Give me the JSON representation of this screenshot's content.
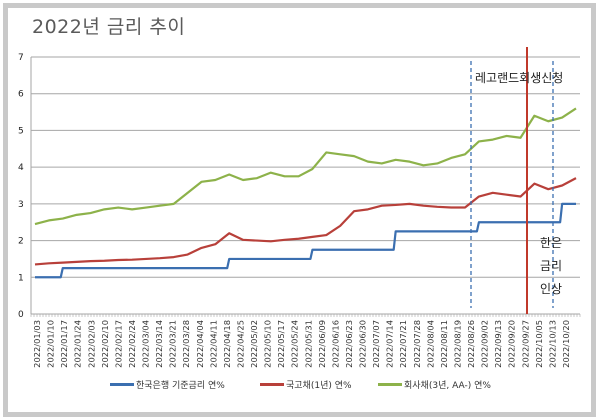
{
  "title": "2022년 금리 추이",
  "chart_data": {
    "type": "line",
    "title": "2022년 금리 추이",
    "xlabel": "",
    "ylabel": "",
    "ylim": [
      0,
      7
    ],
    "yticks": [
      0,
      1,
      2,
      3,
      4,
      5,
      6,
      7
    ],
    "grid": true,
    "legend_position": "bottom",
    "categories": [
      "2022/01/03",
      "2022/01/10",
      "2022/01/17",
      "2022/01/24",
      "2022/02/03",
      "2022/02/10",
      "2022/02/17",
      "2022/02/24",
      "2022/03/04",
      "2022/03/14",
      "2022/03/21",
      "2022/03/28",
      "2022/04/04",
      "2022/04/11",
      "2022/04/18",
      "2022/04/25",
      "2022/05/02",
      "2022/05/10",
      "2022/05/17",
      "2022/05/24",
      "2022/05/31",
      "2022/06/09",
      "2022/06/16",
      "2022/06/23",
      "2022/06/30",
      "2022/07/07",
      "2022/07/14",
      "2022/07/21",
      "2022/07/28",
      "2022/08/04",
      "2022/08/11",
      "2022/08/19",
      "2022/08/26",
      "2022/09/02",
      "2022/09/13",
      "2022/09/20",
      "2022/09/27",
      "2022/10/05",
      "2022/10/13",
      "2022/10/20"
    ],
    "series": [
      {
        "name": "한국은행 기준금리 연%",
        "color": "#3b6fb0",
        "values": [
          1.0,
          1.0,
          1.25,
          1.25,
          1.25,
          1.25,
          1.25,
          1.25,
          1.25,
          1.25,
          1.25,
          1.25,
          1.25,
          1.25,
          1.5,
          1.5,
          1.5,
          1.5,
          1.5,
          1.5,
          1.75,
          1.75,
          1.75,
          1.75,
          1.75,
          1.75,
          2.25,
          2.25,
          2.25,
          2.25,
          2.25,
          2.25,
          2.5,
          2.5,
          2.5,
          2.5,
          2.5,
          2.5,
          3.0,
          3.0
        ]
      },
      {
        "name": "국고채(1년) 연%",
        "color": "#b8403a",
        "values": [
          1.35,
          1.38,
          1.4,
          1.42,
          1.44,
          1.45,
          1.47,
          1.48,
          1.5,
          1.52,
          1.55,
          1.62,
          1.8,
          1.9,
          2.2,
          2.02,
          2.0,
          1.98,
          2.02,
          2.05,
          2.1,
          2.15,
          2.4,
          2.8,
          2.85,
          2.95,
          2.97,
          3.0,
          2.95,
          2.92,
          2.9,
          2.9,
          3.2,
          3.3,
          3.25,
          3.2,
          3.55,
          3.4,
          3.5,
          3.7
        ]
      },
      {
        "name": "회사채(3년, AA-) 연%",
        "color": "#8db24a",
        "values": [
          2.45,
          2.55,
          2.6,
          2.7,
          2.75,
          2.85,
          2.9,
          2.85,
          2.9,
          2.95,
          3.0,
          3.3,
          3.6,
          3.65,
          3.8,
          3.65,
          3.7,
          3.85,
          3.75,
          3.75,
          3.95,
          4.4,
          4.35,
          4.3,
          4.15,
          4.1,
          4.2,
          4.15,
          4.05,
          4.1,
          4.25,
          4.35,
          4.7,
          4.75,
          4.85,
          4.8,
          5.4,
          5.25,
          5.35,
          5.6
        ]
      }
    ],
    "annotations": [
      {
        "text": "레고랜드회생신청",
        "type": "vline-dashed",
        "date": "2022/08/26",
        "color": "#3b6fb0"
      },
      {
        "text": "",
        "type": "vline-solid",
        "date": "2022/09/28",
        "color": "#c0392b"
      },
      {
        "text": "한은 금리 인상",
        "type": "vline-dashed",
        "date": "2022/10/12",
        "color": "#3b6fb0"
      }
    ]
  },
  "legend": {
    "items": [
      {
        "label": "한국은행 기준금리 연%",
        "color": "#3b6fb0"
      },
      {
        "label": "국고채(1년) 연%",
        "color": "#b8403a"
      },
      {
        "label": "회사채(3년, AA-) 연%",
        "color": "#8db24a"
      }
    ]
  },
  "annotations": {
    "legoland": "레고랜드회생신청",
    "bok_line1": "한은",
    "bok_line2": "금리",
    "bok_line3": "인상"
  }
}
